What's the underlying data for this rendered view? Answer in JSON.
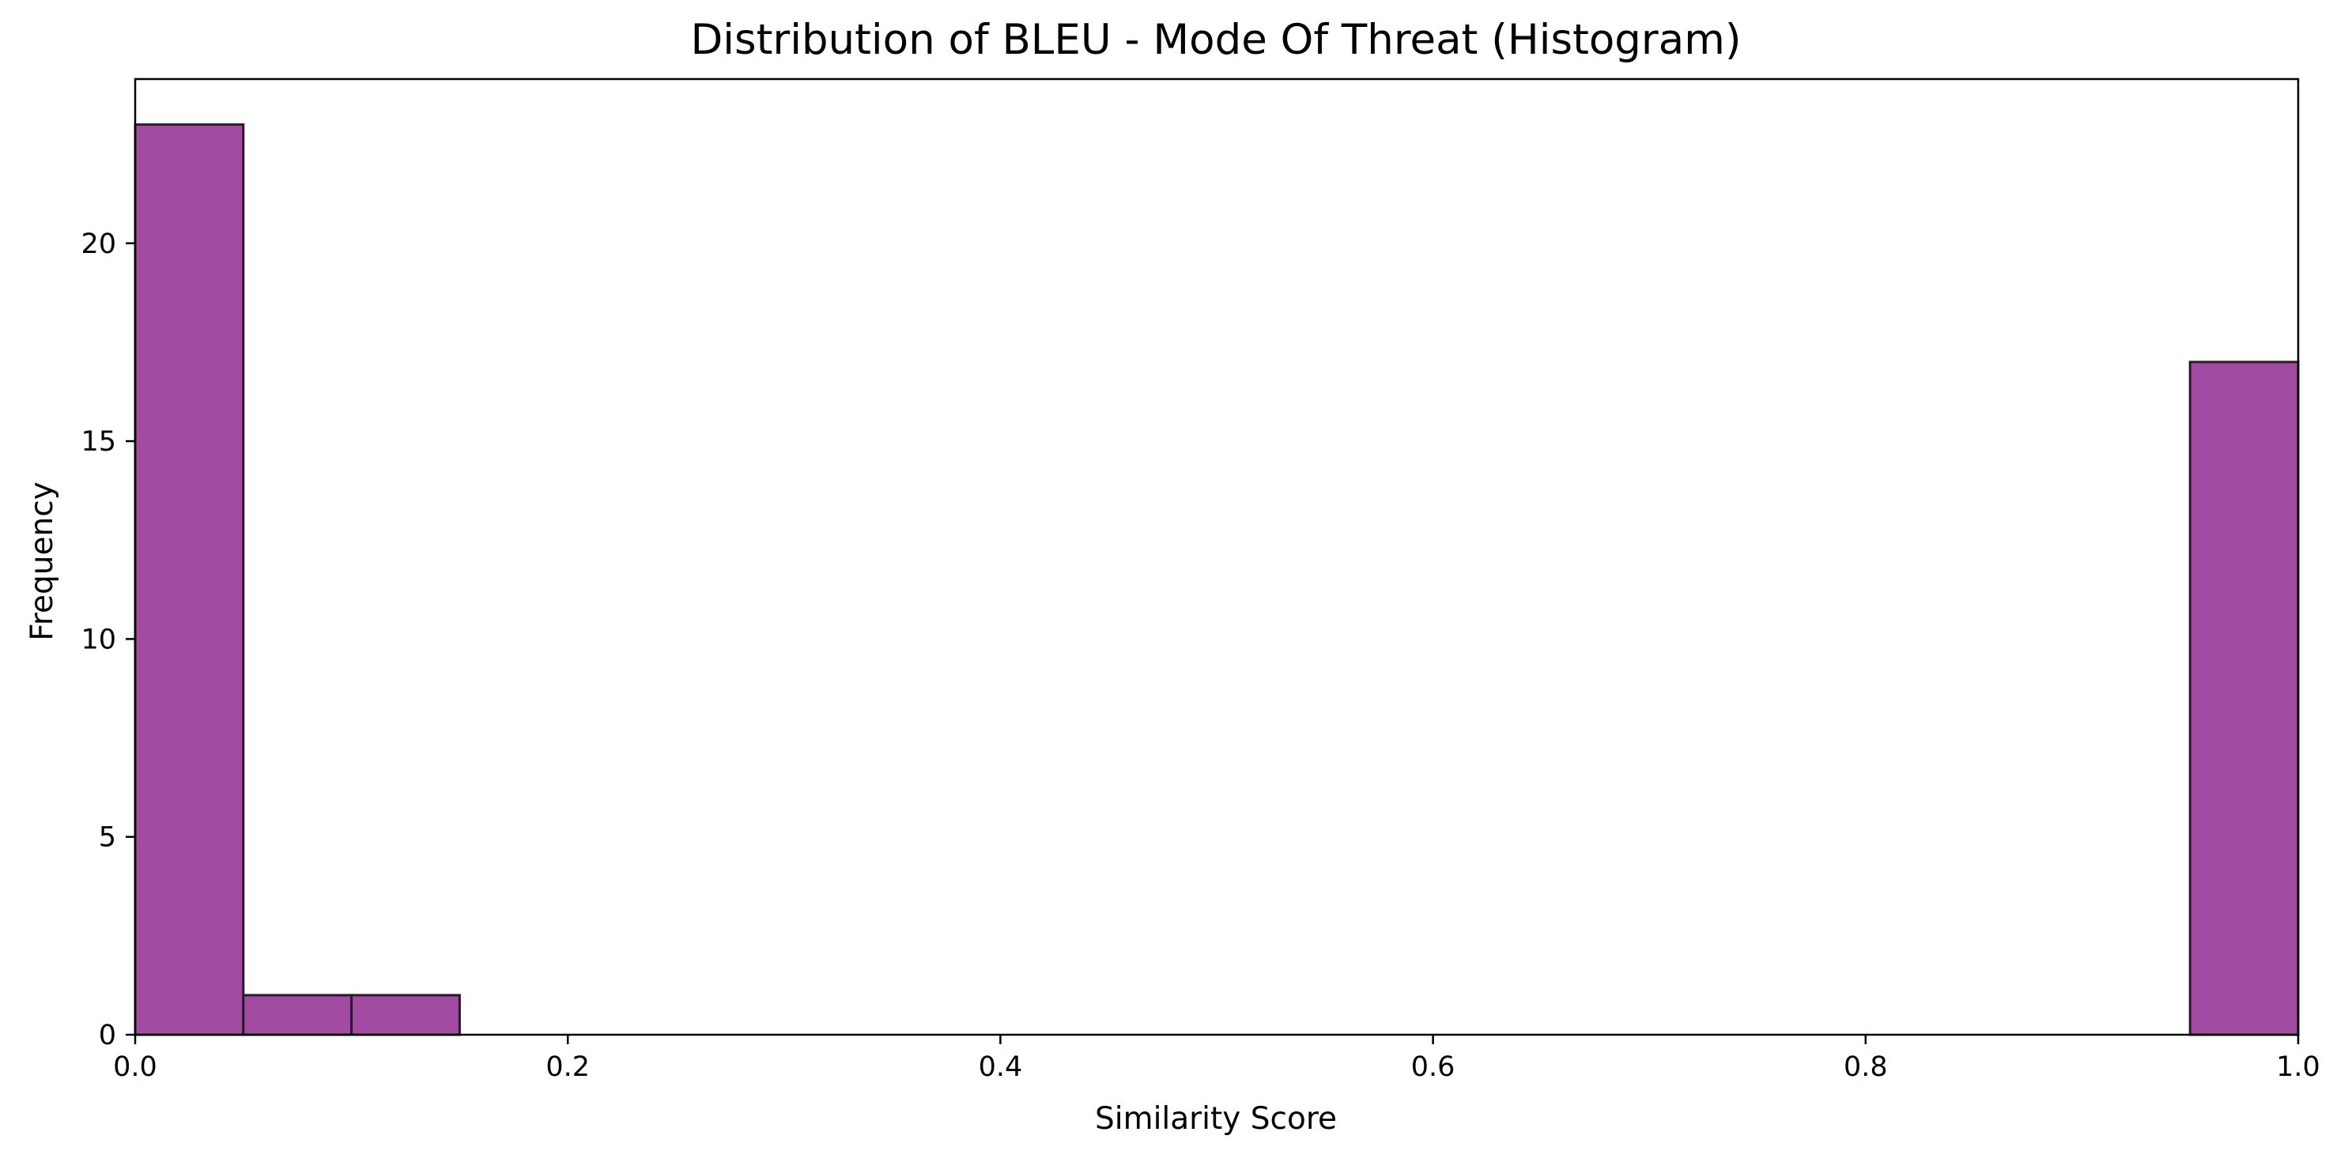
{
  "chart_data": {
    "type": "bar",
    "title": "Distribution of BLEU - Mode Of Threat (Histogram)",
    "xlabel": "Similarity Score",
    "ylabel": "Frequency",
    "xlim": [
      0.0,
      1.0
    ],
    "ylim": [
      0,
      24.15
    ],
    "x_ticks": [
      0.0,
      0.2,
      0.4,
      0.6,
      0.8,
      1.0
    ],
    "x_tick_labels": [
      "0.0",
      "0.2",
      "0.4",
      "0.6",
      "0.8",
      "1.0"
    ],
    "y_ticks": [
      0,
      5,
      10,
      15,
      20
    ],
    "y_tick_labels": [
      "0",
      "5",
      "10",
      "15",
      "20"
    ],
    "grid": false,
    "legend": "none",
    "bin_edges": [
      0.0,
      0.05,
      0.1,
      0.15,
      0.2,
      0.25,
      0.3,
      0.35,
      0.4,
      0.45,
      0.5,
      0.55,
      0.6,
      0.65,
      0.7,
      0.75,
      0.8,
      0.85,
      0.9,
      0.95,
      1.0
    ],
    "counts": [
      23,
      1,
      1,
      0,
      0,
      0,
      0,
      0,
      0,
      0,
      0,
      0,
      0,
      0,
      0,
      0,
      0,
      0,
      0,
      17
    ],
    "bar_color": "#a24ba3",
    "bar_edge_color": "#2a1a2a"
  }
}
